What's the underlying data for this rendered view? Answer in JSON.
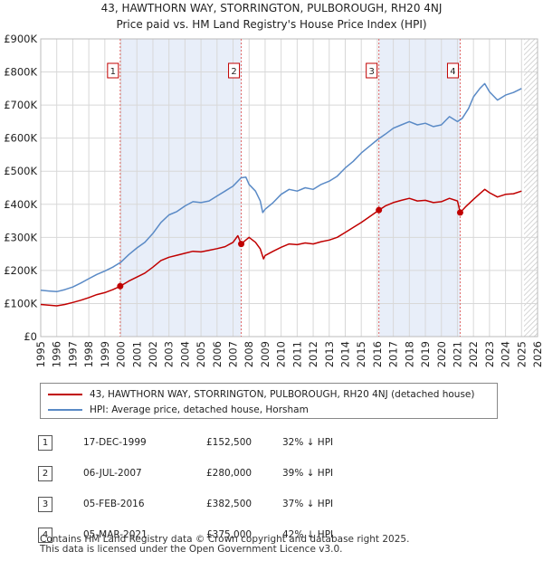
{
  "chart_data": {
    "type": "line",
    "title": "43, HAWTHORN WAY, STORRINGTON, PULBOROUGH, RH20 4NJ",
    "subtitle": "Price paid vs. HM Land Registry's House Price Index (HPI)",
    "xlabel": "",
    "ylabel": "",
    "xlim": [
      1995,
      2026
    ],
    "ylim": [
      0,
      900000
    ],
    "x_ticks": [
      "1995",
      "1996",
      "1997",
      "1998",
      "1999",
      "2000",
      "2001",
      "2002",
      "2003",
      "2004",
      "2005",
      "2006",
      "2007",
      "2008",
      "2009",
      "2010",
      "2011",
      "2012",
      "2013",
      "2014",
      "2015",
      "2016",
      "2017",
      "2018",
      "2019",
      "2020",
      "2021",
      "2022",
      "2023",
      "2024",
      "2025",
      "2026"
    ],
    "y_ticks": [
      {
        "value": 0,
        "label": "£0"
      },
      {
        "value": 100000,
        "label": "£100K"
      },
      {
        "value": 200000,
        "label": "£200K"
      },
      {
        "value": 300000,
        "label": "£300K"
      },
      {
        "value": 400000,
        "label": "£400K"
      },
      {
        "value": 500000,
        "label": "£500K"
      },
      {
        "value": 600000,
        "label": "£600K"
      },
      {
        "value": 700000,
        "label": "£700K"
      },
      {
        "value": 800000,
        "label": "£800K"
      },
      {
        "value": 900000,
        "label": "£900K"
      }
    ],
    "grid": true,
    "shaded_periods": [
      [
        1999.96,
        2007.51
      ],
      [
        2016.1,
        2021.17
      ]
    ],
    "projection_start": 2025.15,
    "series": [
      {
        "name": "hpi",
        "color": "#5a8ac6",
        "points": [
          [
            1995,
            140000
          ],
          [
            1995.5,
            138000
          ],
          [
            1996,
            136000
          ],
          [
            1996.5,
            142000
          ],
          [
            1997,
            150000
          ],
          [
            1997.5,
            162000
          ],
          [
            1998,
            175000
          ],
          [
            1998.5,
            188000
          ],
          [
            1999,
            198000
          ],
          [
            1999.5,
            210000
          ],
          [
            2000,
            225000
          ],
          [
            2000.5,
            248000
          ],
          [
            2001,
            268000
          ],
          [
            2001.5,
            285000
          ],
          [
            2002,
            312000
          ],
          [
            2002.5,
            345000
          ],
          [
            2003,
            368000
          ],
          [
            2003.5,
            378000
          ],
          [
            2004,
            395000
          ],
          [
            2004.5,
            408000
          ],
          [
            2005,
            405000
          ],
          [
            2005.5,
            410000
          ],
          [
            2006,
            425000
          ],
          [
            2006.5,
            440000
          ],
          [
            2007,
            455000
          ],
          [
            2007.5,
            480000
          ],
          [
            2007.8,
            482000
          ],
          [
            2008,
            460000
          ],
          [
            2008.4,
            440000
          ],
          [
            2008.7,
            410000
          ],
          [
            2008.85,
            375000
          ],
          [
            2009,
            385000
          ],
          [
            2009.5,
            405000
          ],
          [
            2010,
            430000
          ],
          [
            2010.5,
            445000
          ],
          [
            2011,
            440000
          ],
          [
            2011.5,
            450000
          ],
          [
            2012,
            445000
          ],
          [
            2012.5,
            460000
          ],
          [
            2013,
            470000
          ],
          [
            2013.5,
            485000
          ],
          [
            2014,
            510000
          ],
          [
            2014.5,
            530000
          ],
          [
            2015,
            555000
          ],
          [
            2015.5,
            575000
          ],
          [
            2016,
            595000
          ],
          [
            2016.5,
            612000
          ],
          [
            2017,
            630000
          ],
          [
            2017.5,
            640000
          ],
          [
            2018,
            650000
          ],
          [
            2018.5,
            640000
          ],
          [
            2019,
            645000
          ],
          [
            2019.5,
            635000
          ],
          [
            2020,
            640000
          ],
          [
            2020.5,
            665000
          ],
          [
            2021,
            650000
          ],
          [
            2021.3,
            660000
          ],
          [
            2021.7,
            690000
          ],
          [
            2022,
            725000
          ],
          [
            2022.4,
            750000
          ],
          [
            2022.7,
            765000
          ],
          [
            2023,
            740000
          ],
          [
            2023.5,
            715000
          ],
          [
            2024,
            730000
          ],
          [
            2024.5,
            738000
          ],
          [
            2025,
            750000
          ]
        ]
      },
      {
        "name": "price_paid",
        "color": "#c00000",
        "points": [
          [
            1995,
            97000
          ],
          [
            1995.5,
            95000
          ],
          [
            1996,
            93000
          ],
          [
            1996.5,
            97000
          ],
          [
            1997,
            103000
          ],
          [
            1997.5,
            110000
          ],
          [
            1998,
            118000
          ],
          [
            1998.5,
            127000
          ],
          [
            1999,
            133000
          ],
          [
            1999.5,
            142000
          ],
          [
            1999.96,
            152500
          ],
          [
            2000.5,
            168000
          ],
          [
            2001,
            180000
          ],
          [
            2001.5,
            192000
          ],
          [
            2002,
            210000
          ],
          [
            2002.5,
            230000
          ],
          [
            2003,
            240000
          ],
          [
            2003.5,
            246000
          ],
          [
            2004,
            252000
          ],
          [
            2004.5,
            258000
          ],
          [
            2005,
            256000
          ],
          [
            2005.5,
            261000
          ],
          [
            2006,
            266000
          ],
          [
            2006.5,
            272000
          ],
          [
            2007,
            285000
          ],
          [
            2007.3,
            305000
          ],
          [
            2007.51,
            280000
          ],
          [
            2008,
            300000
          ],
          [
            2008.4,
            285000
          ],
          [
            2008.7,
            265000
          ],
          [
            2008.9,
            235000
          ],
          [
            2009,
            245000
          ],
          [
            2009.5,
            258000
          ],
          [
            2010,
            270000
          ],
          [
            2010.5,
            280000
          ],
          [
            2011,
            278000
          ],
          [
            2011.5,
            283000
          ],
          [
            2012,
            280000
          ],
          [
            2012.5,
            287000
          ],
          [
            2013,
            292000
          ],
          [
            2013.5,
            300000
          ],
          [
            2014,
            315000
          ],
          [
            2014.5,
            330000
          ],
          [
            2015,
            345000
          ],
          [
            2015.5,
            362000
          ],
          [
            2016.1,
            382500
          ],
          [
            2016.5,
            395000
          ],
          [
            2017,
            405000
          ],
          [
            2017.5,
            412000
          ],
          [
            2018,
            418000
          ],
          [
            2018.5,
            410000
          ],
          [
            2019,
            412000
          ],
          [
            2019.5,
            405000
          ],
          [
            2020,
            408000
          ],
          [
            2020.5,
            418000
          ],
          [
            2021,
            410000
          ],
          [
            2021.17,
            375000
          ],
          [
            2021.5,
            392000
          ],
          [
            2022,
            415000
          ],
          [
            2022.4,
            432000
          ],
          [
            2022.7,
            445000
          ],
          [
            2023,
            435000
          ],
          [
            2023.5,
            422000
          ],
          [
            2024,
            430000
          ],
          [
            2024.5,
            432000
          ],
          [
            2025,
            440000
          ]
        ]
      }
    ],
    "markers": [
      {
        "id": "1",
        "x": 1999.96,
        "y": 152500
      },
      {
        "id": "2",
        "x": 2007.51,
        "y": 280000
      },
      {
        "id": "3",
        "x": 2016.1,
        "y": 382500
      },
      {
        "id": "4",
        "x": 2021.17,
        "y": 375000
      }
    ]
  },
  "legend": {
    "price_paid": "43, HAWTHORN WAY, STORRINGTON, PULBOROUGH, RH20 4NJ (detached house)",
    "hpi": "HPI: Average price, detached house, Horsham"
  },
  "sales": [
    {
      "num": "1",
      "date": "17-DEC-1999",
      "price": "£152,500",
      "delta": "32% ↓ HPI"
    },
    {
      "num": "2",
      "date": "06-JUL-2007",
      "price": "£280,000",
      "delta": "39% ↓ HPI"
    },
    {
      "num": "3",
      "date": "05-FEB-2016",
      "price": "£382,500",
      "delta": "37% ↓ HPI"
    },
    {
      "num": "4",
      "date": "05-MAR-2021",
      "price": "£375,000",
      "delta": "42% ↓ HPI"
    }
  ],
  "footer": {
    "line1": "Contains HM Land Registry data © Crown copyright and database right 2025.",
    "line2": "This data is licensed under the Open Government Licence v3.0."
  }
}
